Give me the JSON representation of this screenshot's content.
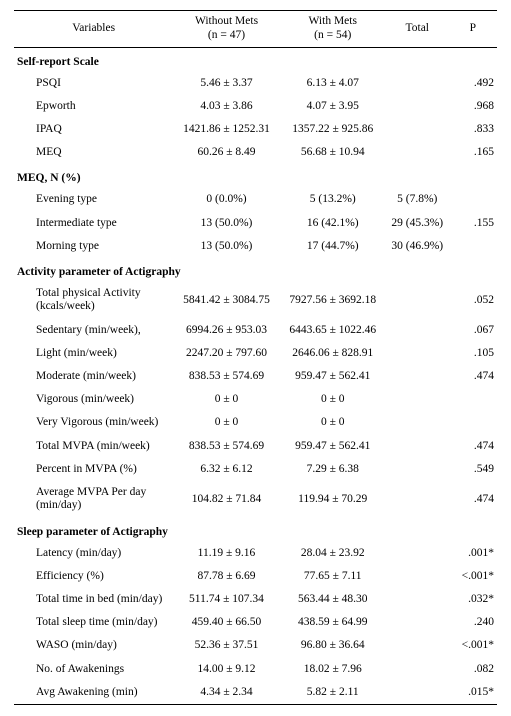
{
  "header": {
    "variables": "Variables",
    "without_mets": "Without Mets",
    "without_mets_n": "(n = 47)",
    "with_mets": "With Mets",
    "with_mets_n": "(n = 54)",
    "total": "Total",
    "p": "P"
  },
  "sections": [
    {
      "title": "Self-report Scale",
      "rows": [
        {
          "label": "PSQI",
          "wo": "5.46 ± 3.37",
          "wi": "6.13 ± 4.07",
          "total": "",
          "p": ".492"
        },
        {
          "label": "Epworth",
          "wo": "4.03 ± 3.86",
          "wi": "4.07 ± 3.95",
          "total": "",
          "p": ".968"
        },
        {
          "label": "IPAQ",
          "wo": "1421.86 ± 1252.31",
          "wi": "1357.22 ± 925.86",
          "total": "",
          "p": ".833"
        },
        {
          "label": "MEQ",
          "wo": "60.26 ± 8.49",
          "wi": "56.68 ± 10.94",
          "total": "",
          "p": ".165"
        }
      ]
    },
    {
      "title": "MEQ, N (%)",
      "rows": [
        {
          "label": "Evening type",
          "wo": "0 (0.0%)",
          "wi": "5 (13.2%)",
          "total": "5 (7.8%)",
          "p": ""
        },
        {
          "label": "Intermediate type",
          "wo": "13 (50.0%)",
          "wi": "16 (42.1%)",
          "total": "29 (45.3%)",
          "p": ".155"
        },
        {
          "label": "Morning type",
          "wo": "13 (50.0%)",
          "wi": "17 (44.7%)",
          "total": "30 (46.9%)",
          "p": ""
        }
      ]
    },
    {
      "title": "Activity parameter of Actigraphy",
      "rows": [
        {
          "label": "Total physical Activity (kcals/week)",
          "wo": "5841.42 ± 3084.75",
          "wi": "7927.56 ± 3692.18",
          "total": "",
          "p": ".052"
        },
        {
          "label": "Sedentary (min/week),",
          "wo": "6994.26 ± 953.03",
          "wi": "6443.65 ± 1022.46",
          "total": "",
          "p": ".067"
        },
        {
          "label": "Light (min/week)",
          "wo": "2247.20 ± 797.60",
          "wi": "2646.06 ± 828.91",
          "total": "",
          "p": ".105"
        },
        {
          "label": "Moderate (min/week)",
          "wo": "838.53 ± 574.69",
          "wi": "959.47 ± 562.41",
          "total": "",
          "p": ".474"
        },
        {
          "label": "Vigorous (min/week)",
          "wo": "0 ± 0",
          "wi": "0 ± 0",
          "total": "",
          "p": ""
        },
        {
          "label": "Very Vigorous (min/week)",
          "wo": "0 ± 0",
          "wi": "0 ± 0",
          "total": "",
          "p": ""
        },
        {
          "label": "Total MVPA (min/week)",
          "wo": "838.53 ± 574.69",
          "wi": "959.47 ± 562.41",
          "total": "",
          "p": ".474"
        },
        {
          "label": "Percent in MVPA (%)",
          "wo": "6.32 ± 6.12",
          "wi": "7.29 ± 6.38",
          "total": "",
          "p": ".549"
        },
        {
          "label": "Average MVPA Per day (min/day)",
          "wo": "104.82 ± 71.84",
          "wi": "119.94 ± 70.29",
          "total": "",
          "p": ".474"
        }
      ]
    },
    {
      "title": "Sleep parameter of   Actigraphy",
      "rows": [
        {
          "label": "Latency (min/day)",
          "wo": "11.19 ± 9.16",
          "wi": "28.04 ± 23.92",
          "total": "",
          "p": ".001*"
        },
        {
          "label": "Efficiency (%)",
          "wo": "87.78 ± 6.69",
          "wi": "77.65 ± 7.11",
          "total": "",
          "p": "<.001*"
        },
        {
          "label": "Total time in bed (min/day)",
          "wo": "511.74 ± 107.34",
          "wi": "563.44 ± 48.30",
          "total": "",
          "p": ".032*"
        },
        {
          "label": "Total sleep time (min/day)",
          "wo": "459.40 ± 66.50",
          "wi": "438.59 ± 64.99",
          "total": "",
          "p": ".240"
        },
        {
          "label": "WASO (min/day)",
          "wo": "52.36 ± 37.51",
          "wi": "96.80 ± 36.64",
          "total": "",
          "p": "<.001*"
        },
        {
          "label": "No. of Awakenings",
          "wo": "14.00 ± 9.12",
          "wi": "18.02 ± 7.96",
          "total": "",
          "p": ".082"
        },
        {
          "label": "Avg Awakening (min)",
          "wo": "4.34 ± 2.34",
          "wi": "5.82 ± 2.11",
          "total": "",
          "p": ".015*"
        }
      ]
    }
  ]
}
